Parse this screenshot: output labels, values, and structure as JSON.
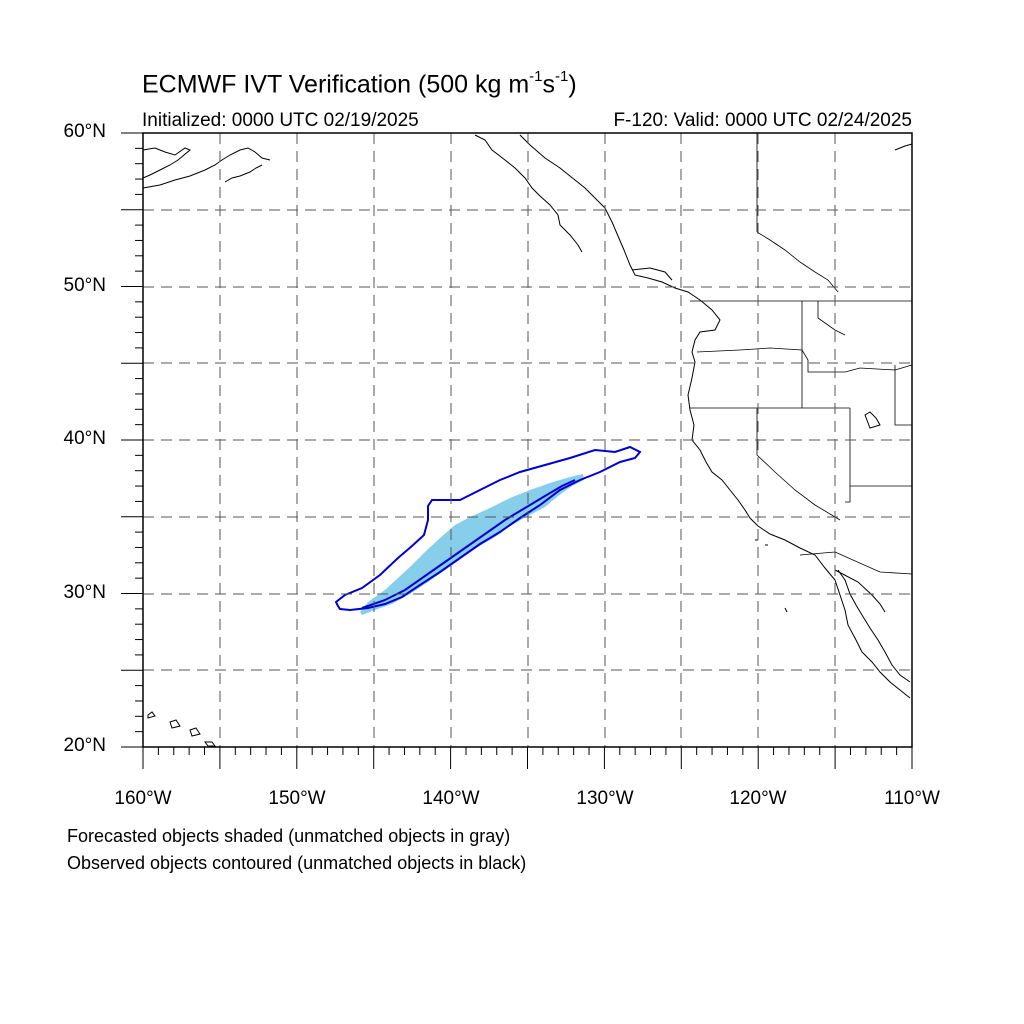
{
  "title": {
    "main": "ECMWF IVT Verification (500 kg m",
    "exp1": "-1",
    "mid": "s",
    "exp2": "-1",
    "end": ")"
  },
  "subtitle": {
    "initialized": "Initialized: 0000 UTC 02/19/2025",
    "valid": "F-120: Valid: 0000 UTC 02/24/2025"
  },
  "axes": {
    "lat_labels": [
      "60°N",
      "50°N",
      "40°N",
      "30°N",
      "20°N"
    ],
    "lon_labels": [
      "160°W",
      "150°W",
      "140°W",
      "130°W",
      "120°W",
      "110°W"
    ]
  },
  "footnotes": {
    "line1": "Forecasted objects shaded (unmatched objects in gray)",
    "line2": "Observed objects contoured (unmatched objects in black)"
  },
  "colors": {
    "forecast_fill": "#87ceeb",
    "observed_contour": "#0000cd",
    "coastline": "#000000",
    "gridline": "#555555"
  }
}
